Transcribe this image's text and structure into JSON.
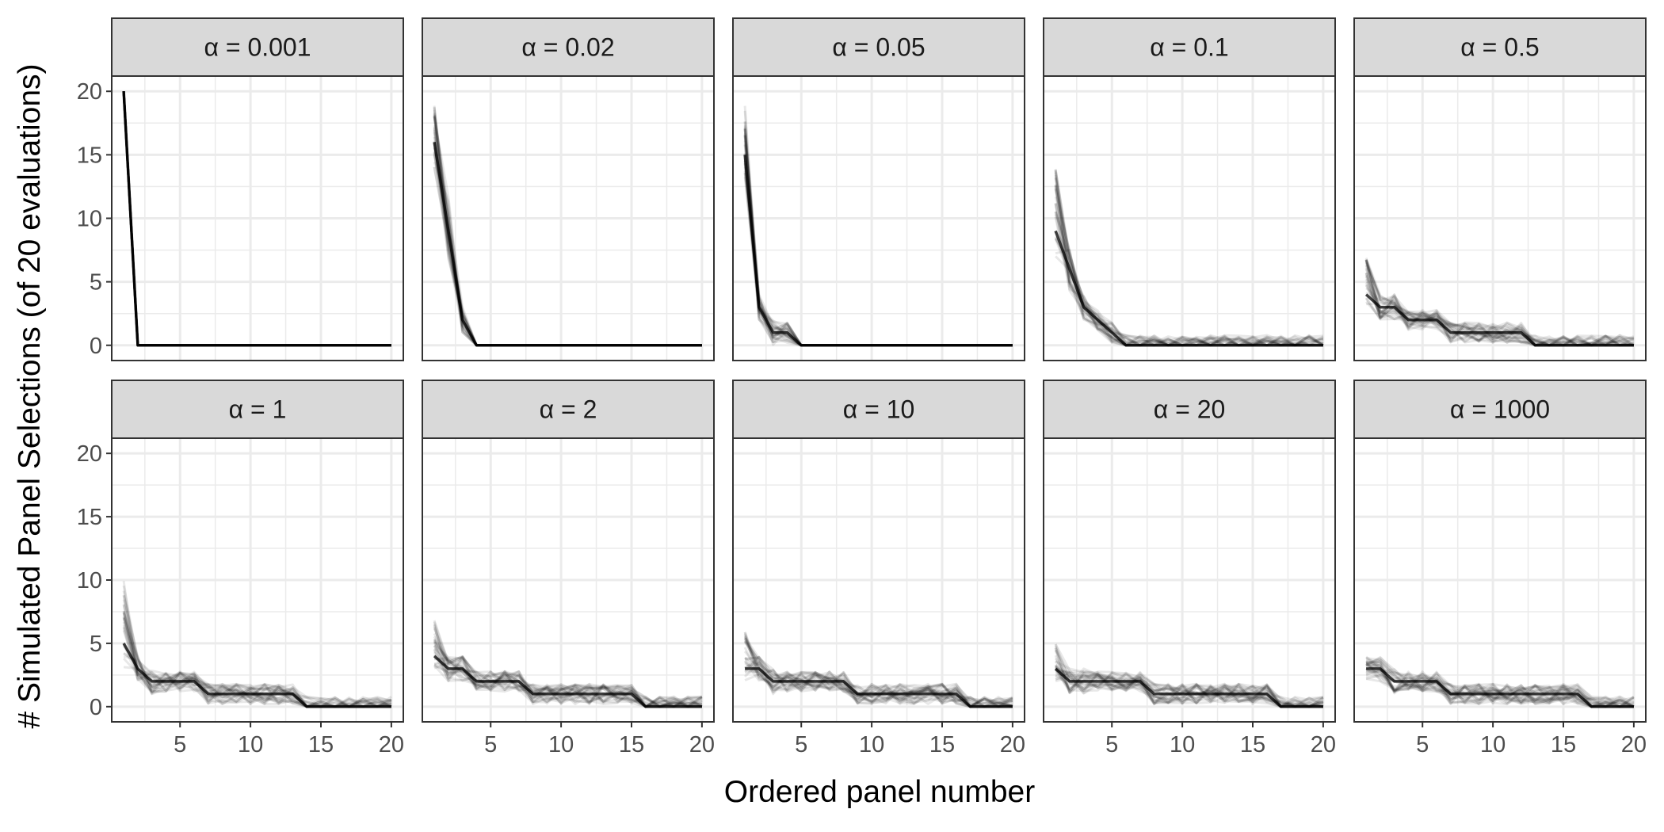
{
  "chart_data": {
    "type": "line",
    "layout": "facet_grid_2x5",
    "xlabel": "Ordered panel number",
    "ylabel": "# Simulated Panel Selections (of 20 evaluations)",
    "xlim": [
      1,
      20
    ],
    "ylim": [
      0,
      20
    ],
    "xticks": [
      5,
      10,
      15,
      20
    ],
    "yticks": [
      0,
      5,
      10,
      15,
      20
    ],
    "grid": true,
    "line_color": "#000000",
    "strip_fill": "#d9d9d9",
    "panel_border_color": "#333333",
    "gridline_color": "#ebebeb",
    "x": [
      1,
      2,
      3,
      4,
      5,
      6,
      7,
      8,
      9,
      10,
      11,
      12,
      13,
      14,
      15,
      16,
      17,
      18,
      19,
      20
    ],
    "facets": [
      {
        "label": "α = 0.001",
        "typical": [
          20,
          0,
          0,
          0,
          0,
          0,
          0,
          0,
          0,
          0,
          0,
          0,
          0,
          0,
          0,
          0,
          0,
          0,
          0,
          0
        ],
        "first_value_range": [
          20,
          20
        ]
      },
      {
        "label": "α = 0.02",
        "typical": [
          16,
          9,
          2,
          0,
          0,
          0,
          0,
          0,
          0,
          0,
          0,
          0,
          0,
          0,
          0,
          0,
          0,
          0,
          0,
          0
        ],
        "first_value_range": [
          14,
          19
        ]
      },
      {
        "label": "α = 0.05",
        "typical": [
          15,
          3,
          1,
          1,
          0,
          0,
          0,
          0,
          0,
          0,
          0,
          0,
          0,
          0,
          0,
          0,
          0,
          0,
          0,
          0
        ],
        "first_value_range": [
          13,
          19
        ]
      },
      {
        "label": "α = 0.1",
        "typical": [
          9,
          6,
          3,
          2,
          1,
          0,
          0,
          0,
          0,
          0,
          0,
          0,
          0,
          0,
          0,
          0,
          0,
          0,
          0,
          0
        ],
        "first_value_range": [
          7,
          14
        ]
      },
      {
        "label": "α = 0.5",
        "typical": [
          4,
          3,
          3,
          2,
          2,
          2,
          1,
          1,
          1,
          1,
          1,
          1,
          0,
          0,
          0,
          0,
          0,
          0,
          0,
          0
        ],
        "first_value_range": [
          3,
          7
        ]
      },
      {
        "label": "α = 1",
        "typical": [
          5,
          3,
          2,
          2,
          2,
          2,
          1,
          1,
          1,
          1,
          1,
          1,
          1,
          0,
          0,
          0,
          0,
          0,
          0,
          0
        ],
        "first_value_range": [
          3,
          10
        ]
      },
      {
        "label": "α = 2",
        "typical": [
          4,
          3,
          3,
          2,
          2,
          2,
          2,
          1,
          1,
          1,
          1,
          1,
          1,
          1,
          1,
          0,
          0,
          0,
          0,
          0
        ],
        "first_value_range": [
          3,
          7
        ]
      },
      {
        "label": "α = 10",
        "typical": [
          3,
          3,
          2,
          2,
          2,
          2,
          2,
          2,
          1,
          1,
          1,
          1,
          1,
          1,
          1,
          1,
          0,
          0,
          0,
          0
        ],
        "first_value_range": [
          2,
          6
        ]
      },
      {
        "label": "α = 20",
        "typical": [
          3,
          2,
          2,
          2,
          2,
          2,
          2,
          1,
          1,
          1,
          1,
          1,
          1,
          1,
          1,
          1,
          0,
          0,
          0,
          0
        ],
        "first_value_range": [
          2,
          5
        ]
      },
      {
        "label": "α = 1000",
        "typical": [
          3,
          3,
          2,
          2,
          2,
          2,
          1,
          1,
          1,
          1,
          1,
          1,
          1,
          1,
          1,
          1,
          0,
          0,
          0,
          0
        ],
        "first_value_range": [
          2,
          4
        ]
      }
    ]
  }
}
